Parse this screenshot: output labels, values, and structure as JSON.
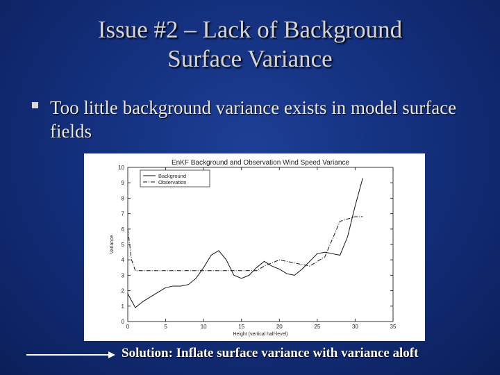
{
  "slide": {
    "title_line1": "Issue #2 – Lack of Background",
    "title_line2": "Surface Variance",
    "bullet_text": "Too little background variance exists in model surface fields",
    "solution_text": "Solution:  Inflate surface variance with variance aloft"
  },
  "chart_data": {
    "type": "line",
    "title": "EnKF Background and Observation Wind Speed Variance",
    "xlabel": "Height (vertical half-level)",
    "ylabel": "Variance",
    "xlim": [
      0,
      35
    ],
    "ylim": [
      0,
      10
    ],
    "xticks": [
      0,
      5,
      10,
      15,
      20,
      25,
      30,
      35
    ],
    "yticks": [
      0,
      1,
      2,
      3,
      4,
      5,
      6,
      7,
      8,
      9,
      10
    ],
    "grid": false,
    "legend_position": "top-left",
    "series": [
      {
        "name": "Background",
        "style": "solid",
        "x": [
          0,
          1,
          2,
          3,
          4,
          5,
          6,
          7,
          8,
          9,
          10,
          11,
          12,
          13,
          14,
          15,
          16,
          17,
          18,
          19,
          20,
          21,
          22,
          23,
          24,
          25,
          26,
          27,
          28,
          29,
          30,
          31
        ],
        "y": [
          1.8,
          0.9,
          1.3,
          1.6,
          1.9,
          2.2,
          2.3,
          2.3,
          2.4,
          2.8,
          3.5,
          4.3,
          4.6,
          4.0,
          3.0,
          2.8,
          3.0,
          3.5,
          3.9,
          3.6,
          3.4,
          3.1,
          3.0,
          3.4,
          3.9,
          4.4,
          4.5,
          4.4,
          4.3,
          5.5,
          7.5,
          9.3
        ]
      },
      {
        "name": "Observation",
        "style": "dashdot",
        "x": [
          0,
          0.5,
          1,
          2,
          5,
          10,
          15,
          17,
          18,
          20,
          22,
          24,
          26,
          28,
          30,
          31
        ],
        "y": [
          6.0,
          4.0,
          3.3,
          3.3,
          3.3,
          3.3,
          3.3,
          3.3,
          3.6,
          4.0,
          3.8,
          3.6,
          4.2,
          6.5,
          6.8,
          6.8
        ]
      }
    ]
  }
}
